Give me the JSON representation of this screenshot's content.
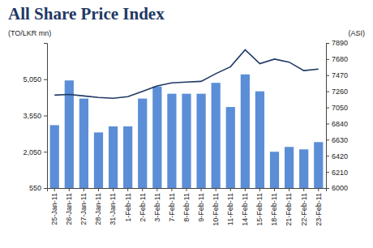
{
  "chart_data": {
    "type": "bar",
    "title": "All Share Price Index",
    "y_label": "(TO/LKR mn)",
    "y2_label": "(ASI)",
    "categories": [
      "25-Jan-11",
      "26-Jan-11",
      "27-Jan-11",
      "28-Jan-11",
      "31-Jan-11",
      "1-Feb-11",
      "2-Feb-11",
      "3-Feb-11",
      "7-Feb-11",
      "8-Feb-11",
      "9-Feb-11",
      "10-Feb-11",
      "11-Feb-11",
      "14-Feb-11",
      "15-Feb-11",
      "18-Feb-11",
      "21-Feb-11",
      "22-Feb-11",
      "23-Feb-11"
    ],
    "series": [
      {
        "type": "bar",
        "color": "#5b8ed6",
        "values": [
          3150,
          5000,
          4250,
          2850,
          3100,
          3100,
          4250,
          4750,
          4450,
          4450,
          4450,
          4900,
          3900,
          5250,
          4550,
          2050,
          2250,
          2150,
          2450
        ]
      },
      {
        "type": "line",
        "axis": "y2",
        "color": "#1f3864",
        "values": [
          7210,
          7220,
          7200,
          7180,
          7170,
          7190,
          7260,
          7330,
          7370,
          7380,
          7390,
          7490,
          7580,
          7800,
          7620,
          7680,
          7640,
          7530,
          7550
        ]
      }
    ],
    "ylim": [
      550,
      6550
    ],
    "yticks": [
      550,
      {
        "value": 2050,
        "label": "2,050"
      },
      {
        "value": 3550,
        "label": "3,550"
      },
      {
        "value": 5050,
        "label": "5,050"
      }
    ],
    "y2lim": [
      6000,
      7890
    ],
    "y2ticks": [
      6000,
      6210,
      6420,
      6630,
      6840,
      7050,
      7260,
      7470,
      7680,
      7890
    ]
  }
}
